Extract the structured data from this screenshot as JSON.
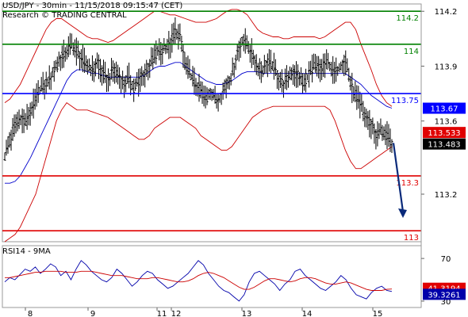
{
  "header": {
    "line1": "USD/JPY - 30min - 11/15/2018 09:15:47 (CET)",
    "line2": "Research © TRADING CENTRAL"
  },
  "colors": {
    "price": "#000000",
    "bollinger": "#cc0000",
    "moving_average": "#0000cc",
    "resistance_green": "#008000",
    "pivot_blue": "#0000ff",
    "support_red": "#e00000",
    "projection_arrow": "#0a2a7a",
    "rsi": "#0000aa",
    "rsi_ma": "#cc0000"
  },
  "chart_data": [
    {
      "type": "line",
      "title": "USD/JPY - 30min - 11/15/2018 09:15:47 (CET)",
      "subtitle": "Research © TRADING CENTRAL",
      "y_ticks": [
        "114.2",
        "113.9",
        "113.6",
        "113.2"
      ],
      "ylim": [
        112.94,
        114.24
      ],
      "x_ticks": [
        "8",
        "9",
        "11",
        "12",
        "13",
        "14",
        "15"
      ],
      "horizontal_levels": [
        {
          "label": "114.2",
          "value": 114.2,
          "color": "#008000"
        },
        {
          "label": "114",
          "value": 114.02,
          "color": "#008000"
        },
        {
          "label": "113.75",
          "value": 113.75,
          "color": "#0000ff"
        },
        {
          "label": "113.3",
          "value": 113.3,
          "color": "#e00000"
        },
        {
          "label": "113",
          "value": 113.0,
          "color": "#e00000"
        }
      ],
      "price_tags": [
        {
          "label": "113.67",
          "value": 113.67,
          "bg": "#0000ff",
          "fg": "#ffffff"
        },
        {
          "label": "113.533",
          "value": 113.533,
          "bg": "#e00000",
          "fg": "#ffffff"
        },
        {
          "label": "113.483",
          "value": 113.483,
          "bg": "#000000",
          "fg": "#ffffff"
        }
      ],
      "series": [
        {
          "values": [
            113.4,
            113.5,
            113.58,
            113.62,
            113.6,
            113.66,
            113.72,
            113.78,
            113.8,
            113.84,
            113.9,
            113.95,
            113.98,
            114.02,
            113.98,
            113.94,
            113.9,
            113.88,
            113.92,
            113.86,
            113.82,
            113.88,
            113.86,
            113.8,
            113.84,
            113.78,
            113.82,
            113.86,
            113.9,
            113.96,
            113.98,
            114.0,
            114.02,
            114.1,
            114.05,
            113.9,
            113.85,
            113.8,
            113.76,
            113.72,
            113.76,
            113.7,
            113.74,
            113.8,
            113.85,
            113.96,
            114.04,
            114.02,
            113.96,
            113.9,
            113.88,
            113.92,
            113.9,
            113.84,
            113.8,
            113.84,
            113.88,
            113.84,
            113.8,
            113.86,
            113.9,
            113.88,
            113.92,
            113.9,
            113.86,
            113.9,
            113.94,
            113.8,
            113.74,
            113.68,
            113.62,
            113.58,
            113.52,
            113.55,
            113.52,
            113.48
          ]
        },
        {
          "values": [
            113.26,
            113.26,
            113.27,
            113.3,
            113.35,
            113.4,
            113.46,
            113.52,
            113.58,
            113.64,
            113.7,
            113.76,
            113.82,
            113.86,
            113.88,
            113.88,
            113.87,
            113.86,
            113.86,
            113.85,
            113.84,
            113.84,
            113.84,
            113.84,
            113.84,
            113.84,
            113.84,
            113.85,
            113.87,
            113.89,
            113.9,
            113.9,
            113.91,
            113.92,
            113.92,
            113.9,
            113.88,
            113.86,
            113.84,
            113.82,
            113.81,
            113.8,
            113.8,
            113.81,
            113.82,
            113.84,
            113.86,
            113.87,
            113.87,
            113.87,
            113.86,
            113.86,
            113.86,
            113.86,
            113.86,
            113.86,
            113.86,
            113.86,
            113.86,
            113.86,
            113.86,
            113.86,
            113.86,
            113.86,
            113.86,
            113.86,
            113.86,
            113.84,
            113.82,
            113.8,
            113.77,
            113.74,
            113.72,
            113.7,
            113.68,
            113.67
          ]
        },
        {
          "values": [
            113.7,
            113.72,
            113.76,
            113.8,
            113.86,
            113.92,
            113.98,
            114.04,
            114.1,
            114.14,
            114.16,
            114.16,
            114.14,
            114.12,
            114.1,
            114.08,
            114.06,
            114.05,
            114.05,
            114.04,
            114.03,
            114.04,
            114.06,
            114.08,
            114.1,
            114.12,
            114.14,
            114.16,
            114.18,
            114.2,
            114.2,
            114.19,
            114.18,
            114.18,
            114.17,
            114.16,
            114.15,
            114.14,
            114.14,
            114.14,
            114.15,
            114.16,
            114.18,
            114.2,
            114.21,
            114.21,
            114.2,
            114.18,
            114.14,
            114.1,
            114.08,
            114.07,
            114.06,
            114.06,
            114.05,
            114.05,
            114.06,
            114.06,
            114.06,
            114.06,
            114.06,
            114.05,
            114.06,
            114.08,
            114.1,
            114.12,
            114.14,
            114.14,
            114.1,
            114.02,
            113.95,
            113.88,
            113.8,
            113.74,
            113.7,
            113.68
          ]
        },
        {
          "values": [
            112.94,
            112.96,
            112.98,
            113.02,
            113.08,
            113.14,
            113.2,
            113.3,
            113.4,
            113.5,
            113.6,
            113.66,
            113.7,
            113.68,
            113.66,
            113.66,
            113.66,
            113.65,
            113.64,
            113.63,
            113.62,
            113.6,
            113.58,
            113.56,
            113.54,
            113.52,
            113.5,
            113.5,
            113.52,
            113.56,
            113.58,
            113.6,
            113.62,
            113.62,
            113.62,
            113.6,
            113.58,
            113.56,
            113.52,
            113.5,
            113.48,
            113.46,
            113.44,
            113.44,
            113.46,
            113.5,
            113.54,
            113.58,
            113.62,
            113.64,
            113.66,
            113.67,
            113.68,
            113.68,
            113.68,
            113.68,
            113.68,
            113.68,
            113.68,
            113.68,
            113.68,
            113.68,
            113.68,
            113.66,
            113.6,
            113.52,
            113.44,
            113.38,
            113.34,
            113.34,
            113.36,
            113.38,
            113.4,
            113.42,
            113.44,
            113.46
          ]
        }
      ]
    },
    {
      "type": "line",
      "title": "RSI14 - 9MA",
      "y_ticks": [
        "70",
        "30"
      ],
      "ylim": [
        24,
        82
      ],
      "x_ticks": [
        "8",
        "9",
        "11",
        "12",
        "13",
        "14",
        "15"
      ],
      "value_tags": [
        {
          "label": "41.3194",
          "value": 41.32,
          "bg": "#e00000",
          "fg": "#ffffff"
        },
        {
          "label": "39.3261",
          "value": 39.33,
          "bg": "#0000aa",
          "fg": "#ffffff"
        }
      ],
      "series": [
        {
          "values": [
            48,
            52,
            50,
            55,
            60,
            58,
            62,
            56,
            60,
            65,
            62,
            54,
            58,
            50,
            60,
            68,
            64,
            58,
            54,
            50,
            48,
            52,
            60,
            56,
            50,
            44,
            48,
            54,
            58,
            56,
            50,
            46,
            42,
            44,
            48,
            52,
            56,
            62,
            68,
            64,
            56,
            50,
            44,
            40,
            38,
            34,
            30,
            36,
            48,
            56,
            58,
            54,
            50,
            46,
            40,
            46,
            50,
            58,
            60,
            54,
            50,
            46,
            42,
            40,
            44,
            48,
            54,
            50,
            42,
            36,
            34,
            32,
            38,
            42,
            44,
            40,
            39
          ]
        },
        {
          "values": [
            52,
            52,
            53,
            54,
            55,
            56,
            57,
            57,
            58,
            58,
            58,
            58,
            57,
            57,
            57,
            58,
            58,
            58,
            57,
            56,
            55,
            54,
            54,
            54,
            53,
            52,
            51,
            51,
            51,
            52,
            52,
            51,
            50,
            49,
            48,
            48,
            49,
            51,
            54,
            56,
            57,
            56,
            54,
            52,
            49,
            46,
            43,
            41,
            41,
            43,
            46,
            49,
            51,
            51,
            50,
            49,
            48,
            49,
            51,
            52,
            52,
            51,
            49,
            47,
            46,
            46,
            47,
            48,
            47,
            45,
            43,
            41,
            40,
            40,
            40,
            41,
            41.3
          ]
        }
      ]
    }
  ]
}
